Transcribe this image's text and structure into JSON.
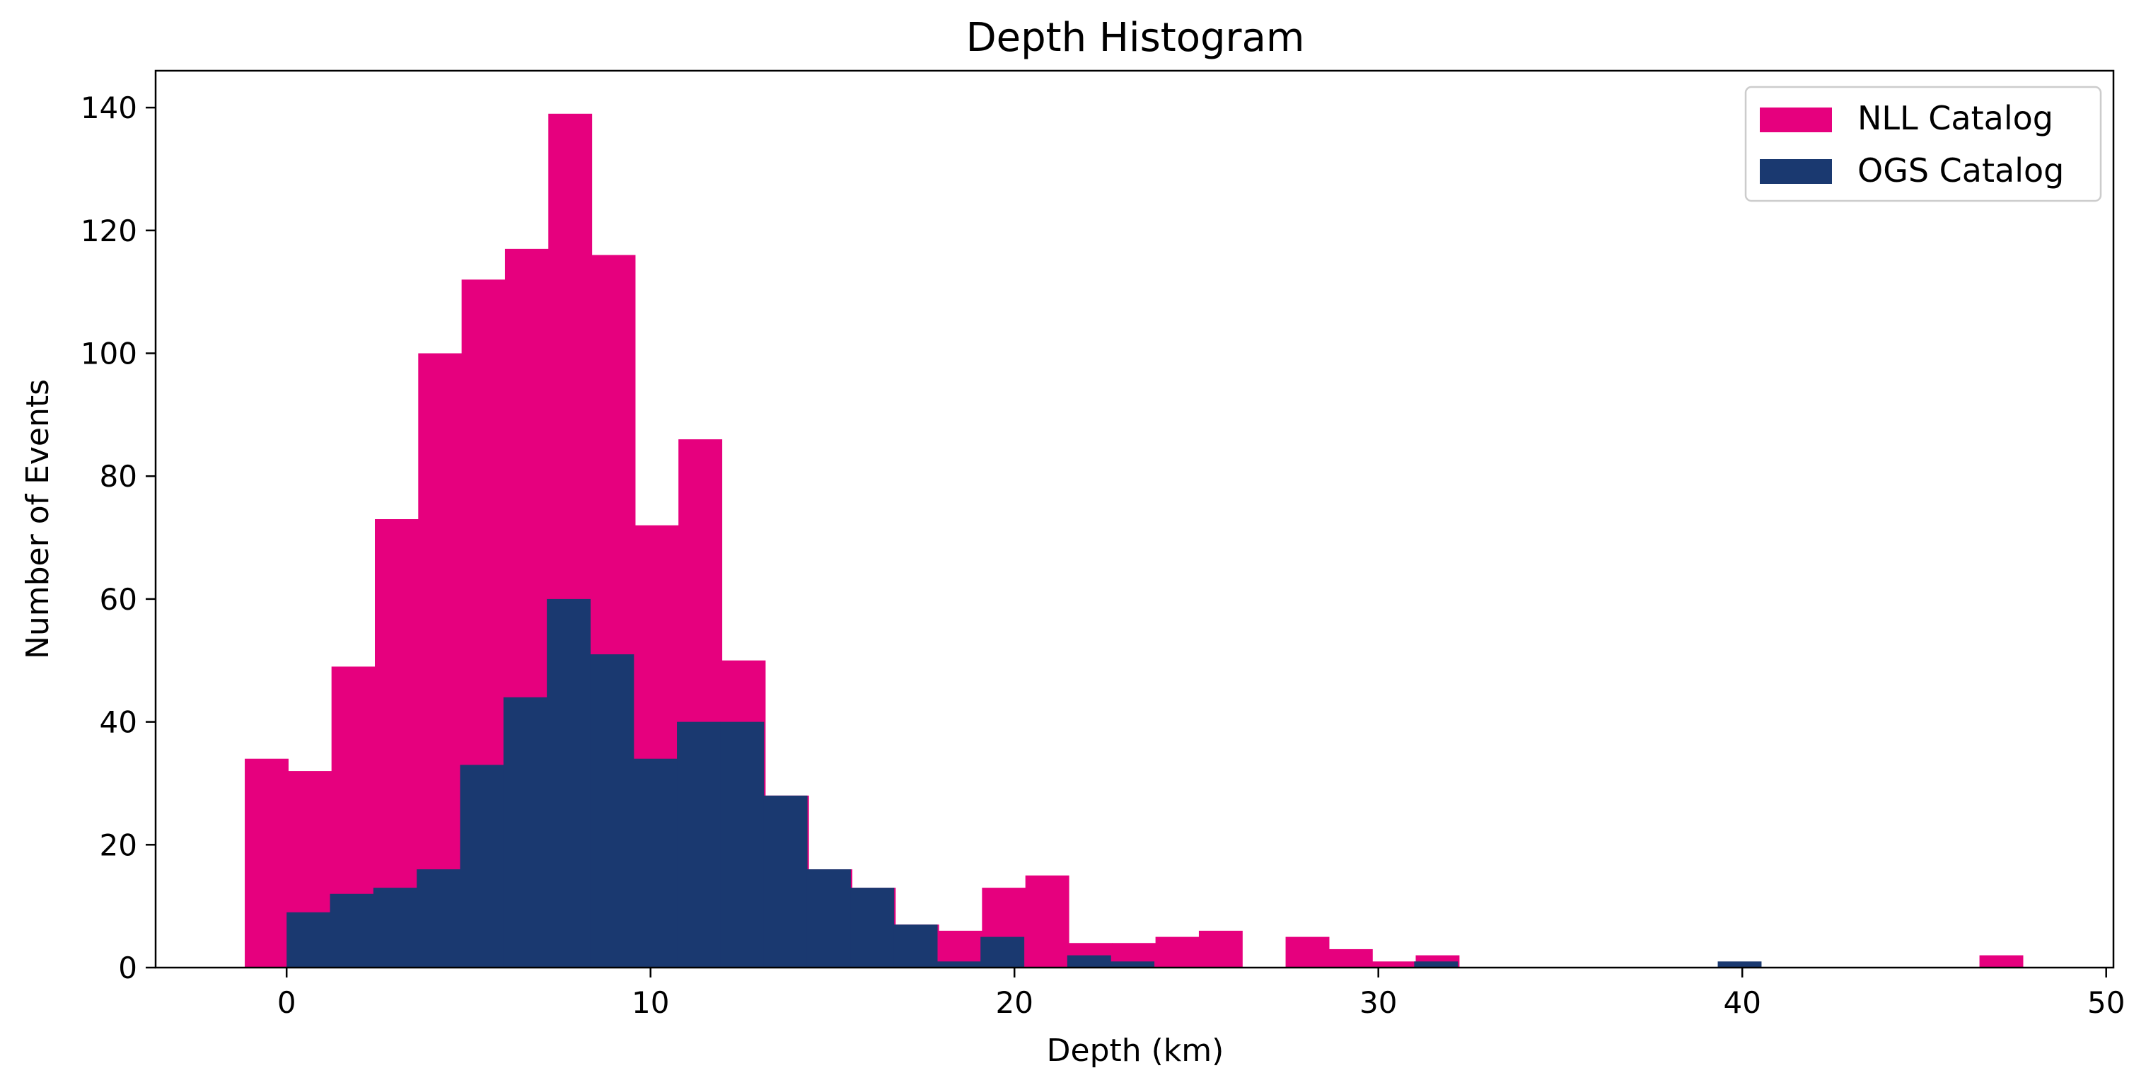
{
  "chart_data": {
    "type": "bar",
    "title": "Depth Histogram",
    "xlabel": "Depth (km)",
    "ylabel": "Number of Events",
    "xlim": [
      -3.6,
      50.2
    ],
    "ylim": [
      0,
      146
    ],
    "xticks": [
      0,
      10,
      20,
      30,
      40,
      50
    ],
    "yticks": [
      0,
      20,
      40,
      60,
      80,
      100,
      120,
      140
    ],
    "grid": false,
    "legend_position": "top-right",
    "bin_width": 1.1917,
    "series": [
      {
        "name": "NLL Catalog",
        "color": "#e6007e",
        "bin_start": -1.15,
        "values": [
          34,
          32,
          49,
          73,
          100,
          112,
          117,
          139,
          116,
          72,
          86,
          50,
          28,
          16,
          13,
          7,
          6,
          13,
          15,
          4,
          4,
          5,
          6,
          0,
          5,
          3,
          1,
          2,
          0,
          0,
          0,
          0,
          0,
          0,
          0,
          0,
          0,
          0,
          0,
          0,
          2
        ]
      },
      {
        "name": "OGS Catalog",
        "color": "#1a3970",
        "bin_start": 0.0,
        "values": [
          9,
          12,
          13,
          16,
          33,
          44,
          60,
          51,
          34,
          40,
          40,
          28,
          16,
          13,
          7,
          1,
          5,
          0,
          2,
          1,
          0,
          0,
          0,
          0,
          0,
          0,
          1,
          0,
          0,
          0,
          0,
          0,
          0,
          1
        ]
      }
    ]
  }
}
